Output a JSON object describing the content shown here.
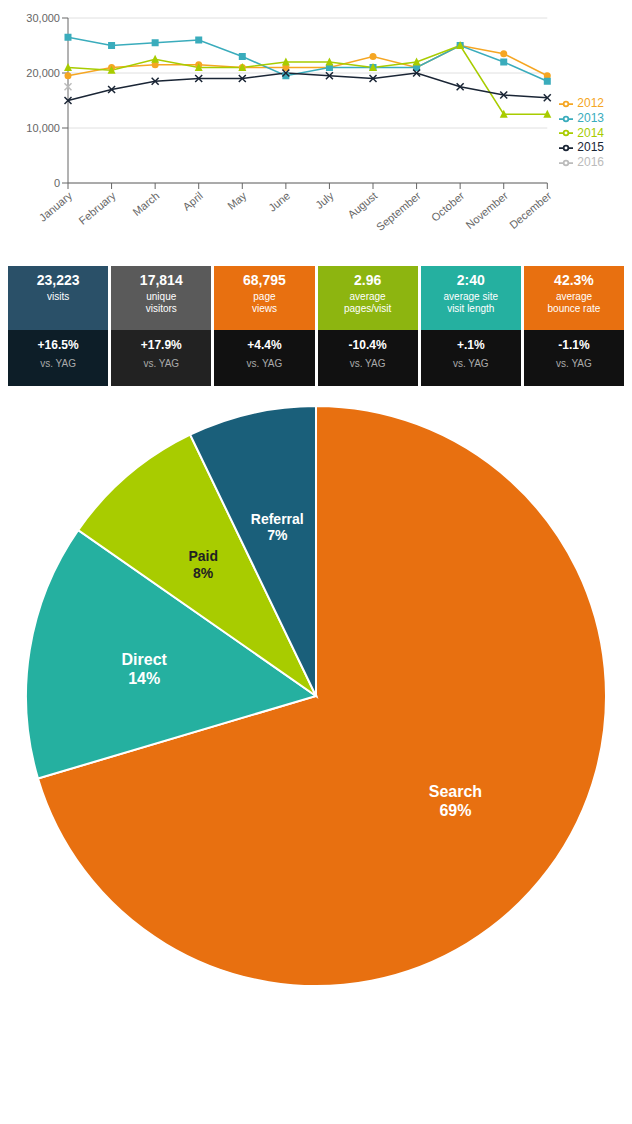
{
  "chart_data": [
    {
      "type": "line",
      "categories": [
        "January",
        "February",
        "March",
        "April",
        "May",
        "June",
        "July",
        "August",
        "September",
        "October",
        "November",
        "December"
      ],
      "series": [
        {
          "name": "2012",
          "color": "#f5a623",
          "marker": "circle",
          "values": [
            19500,
            21000,
            21500,
            21500,
            21000,
            21000,
            21000,
            23000,
            21000,
            25000,
            23500,
            19500
          ]
        },
        {
          "name": "2013",
          "color": "#3aacbc",
          "marker": "square",
          "values": [
            26500,
            25000,
            25500,
            26000,
            23000,
            19500,
            21000,
            21000,
            21000,
            25000,
            22000,
            18500
          ]
        },
        {
          "name": "2014",
          "color": "#a8cc00",
          "marker": "triangle",
          "values": [
            21000,
            20500,
            22500,
            21000,
            21000,
            22000,
            22000,
            21000,
            22000,
            25000,
            12500,
            12500
          ]
        },
        {
          "name": "2015",
          "color": "#1a2535",
          "marker": "x",
          "values": [
            15000,
            17000,
            18500,
            19000,
            19000,
            20000,
            19500,
            19000,
            20000,
            17500,
            16000,
            15500
          ]
        },
        {
          "name": "2016",
          "color": "#bbbbbb",
          "marker": "x",
          "values": [
            17500,
            null,
            null,
            null,
            null,
            null,
            null,
            null,
            null,
            null,
            null,
            null
          ]
        }
      ],
      "ylim": [
        0,
        30000
      ],
      "yticks": [
        0,
        {
          "value": 10000,
          "label": "10,000"
        },
        {
          "value": 20000,
          "label": "20,000"
        },
        {
          "value": 30000,
          "label": "30,000"
        }
      ],
      "grid": true,
      "legend": "right"
    },
    {
      "type": "metrics",
      "metrics": [
        {
          "value": "23,223",
          "label": "visits",
          "change": "+16.5%",
          "sub": "vs. YAG",
          "colors": [
            "#2a5068",
            "#0d1e28"
          ]
        },
        {
          "value": "17,814",
          "label": "unique\nvisitors",
          "change": "+17.9%",
          "sub": "vs. YAG",
          "colors": [
            "#5a5a5a",
            "#222222"
          ]
        },
        {
          "value": "68,795",
          "label": "page\nviews",
          "change": "+4.4%",
          "sub": "vs. YAG",
          "colors": [
            "#e87010",
            "#111111"
          ]
        },
        {
          "value": "2.96",
          "label": "average\npages/visit",
          "change": "-10.4%",
          "sub": "vs. YAG",
          "colors": [
            "#8db510",
            "#111111"
          ]
        },
        {
          "value": "2:40",
          "label": "average site\nvisit length",
          "change": "+.1%",
          "sub": "vs. YAG",
          "colors": [
            "#25b0a0",
            "#111111"
          ]
        },
        {
          "value": "42.3%",
          "label": "average\nbounce rate",
          "change": "-1.1%",
          "sub": "vs. YAG",
          "colors": [
            "#e87010",
            "#111111"
          ]
        }
      ]
    },
    {
      "type": "pie",
      "categories": [
        "Search",
        "Direct",
        "Paid",
        "Referral"
      ],
      "values": [
        69,
        14,
        8,
        7
      ],
      "value_labels": [
        "69%",
        "14%",
        "8%",
        "7%"
      ],
      "colors": [
        "#e87010",
        "#25b0a0",
        "#a8cc00",
        "#1a5f7a"
      ],
      "data_labels": true
    }
  ]
}
